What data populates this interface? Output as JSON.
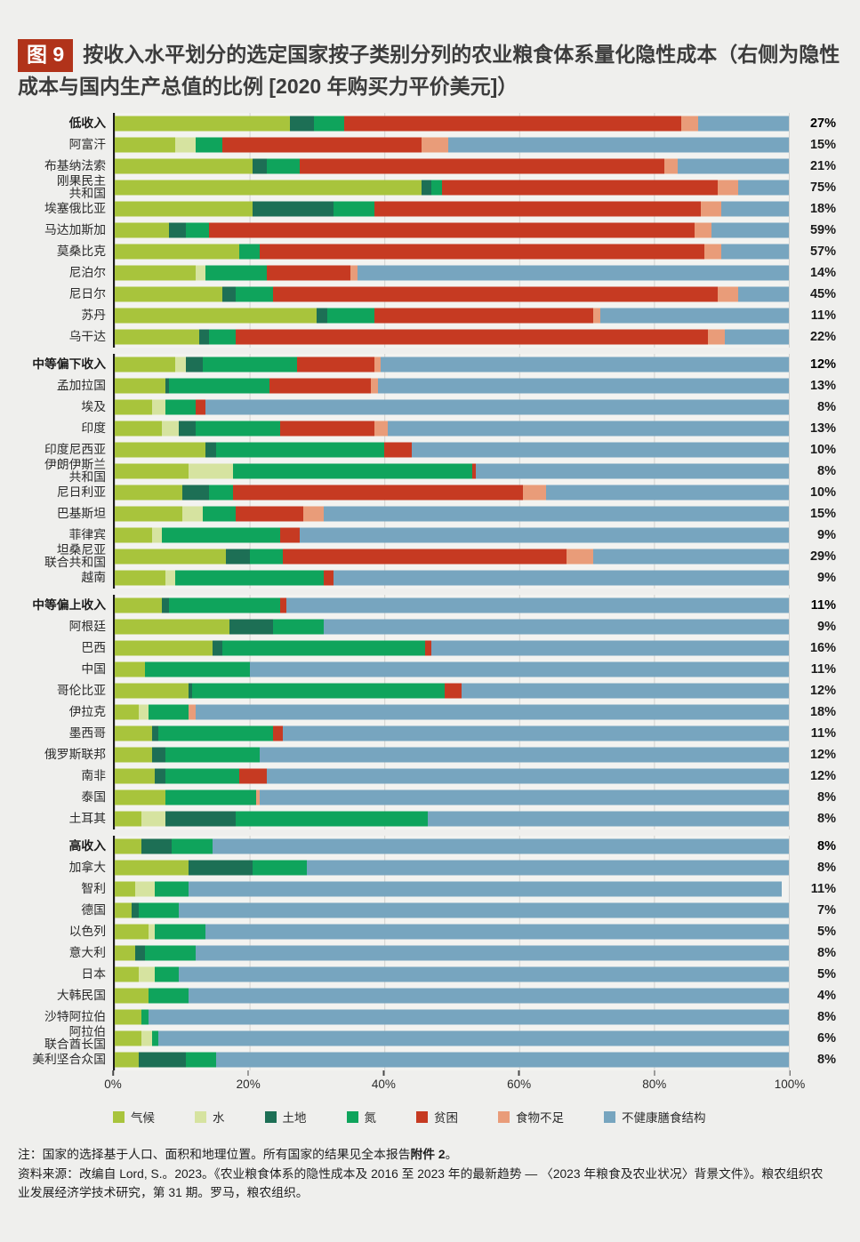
{
  "figure": {
    "badge": "图 9",
    "title": "按收入水平划分的选定国家按子类别分列的农业粮食体系量化隐性成本（右侧为隐性成本与国内生产总值的比例 [2020 年购买力平价美元]）"
  },
  "chart_data": {
    "type": "bar",
    "stacked": true,
    "orientation": "horizontal",
    "value_unit": "percent share of quantified hidden costs",
    "xlim": [
      0,
      100
    ],
    "grid": true,
    "x_ticks": [
      "0%",
      "20%",
      "40%",
      "60%",
      "80%",
      "100%"
    ],
    "right_column": "hidden costs as share of GDP",
    "legend": [
      {
        "key": "climate",
        "label": "气候",
        "color": "#a8c43c"
      },
      {
        "key": "water",
        "label": "水",
        "color": "#d6e3a0"
      },
      {
        "key": "land",
        "label": "土地",
        "color": "#1d6f55"
      },
      {
        "key": "nitrogen",
        "label": "氮",
        "color": "#0fa45c"
      },
      {
        "key": "poverty",
        "label": "贫困",
        "color": "#c63a22"
      },
      {
        "key": "food",
        "label": "食物不足",
        "color": "#e99c79"
      },
      {
        "key": "diets",
        "label": "不健康膳食结构",
        "color": "#77a5bf"
      }
    ],
    "groups": [
      {
        "name": "低收入",
        "rows": [
          {
            "label": "低收入",
            "bold": true,
            "gdp": "27%",
            "v": {
              "climate": 26,
              "water": 0,
              "land": 3.5,
              "nitrogen": 4.5,
              "poverty": 50,
              "food": 2.5,
              "diets": 13.5
            }
          },
          {
            "label": "阿富汗",
            "gdp": "15%",
            "v": {
              "climate": 9,
              "water": 3,
              "land": 0,
              "nitrogen": 4,
              "poverty": 29.5,
              "food": 4,
              "diets": 50.5
            }
          },
          {
            "label": "布基纳法索",
            "gdp": "21%",
            "v": {
              "climate": 20.5,
              "water": 0,
              "land": 2,
              "nitrogen": 5,
              "poverty": 54,
              "food": 2,
              "diets": 16.5
            }
          },
          {
            "label": "刚果民主\n共和国",
            "gdp": "75%",
            "v": {
              "climate": 45.5,
              "water": 0,
              "land": 1.5,
              "nitrogen": 1.5,
              "poverty": 41,
              "food": 3,
              "diets": 7.5
            }
          },
          {
            "label": "埃塞俄比亚",
            "gdp": "18%",
            "v": {
              "climate": 20.5,
              "water": 0,
              "land": 12,
              "nitrogen": 6,
              "poverty": 48.5,
              "food": 3,
              "diets": 10
            }
          },
          {
            "label": "马达加斯加",
            "gdp": "59%",
            "v": {
              "climate": 8,
              "water": 0,
              "land": 2.5,
              "nitrogen": 3.5,
              "poverty": 72,
              "food": 2.5,
              "diets": 11.5
            }
          },
          {
            "label": "莫桑比克",
            "gdp": "57%",
            "v": {
              "climate": 18.5,
              "water": 0,
              "land": 0,
              "nitrogen": 3,
              "poverty": 66,
              "food": 2.5,
              "diets": 10
            }
          },
          {
            "label": "尼泊尔",
            "gdp": "14%",
            "v": {
              "climate": 12,
              "water": 1.5,
              "land": 0,
              "nitrogen": 9,
              "poverty": 12.5,
              "food": 1,
              "diets": 64
            }
          },
          {
            "label": "尼日尔",
            "gdp": "45%",
            "v": {
              "climate": 16,
              "water": 0,
              "land": 2,
              "nitrogen": 5.5,
              "poverty": 66,
              "food": 3,
              "diets": 7.5
            }
          },
          {
            "label": "苏丹",
            "gdp": "11%",
            "v": {
              "climate": 30,
              "water": 0,
              "land": 1.5,
              "nitrogen": 7,
              "poverty": 32.5,
              "food": 1,
              "diets": 28
            }
          },
          {
            "label": "乌干达",
            "gdp": "22%",
            "v": {
              "climate": 12.5,
              "water": 0,
              "land": 1.5,
              "nitrogen": 4,
              "poverty": 70,
              "food": 2.5,
              "diets": 9.5
            }
          }
        ]
      },
      {
        "name": "中等偏下收入",
        "rows": [
          {
            "label": "中等偏下收入",
            "bold": true,
            "gdp": "12%",
            "v": {
              "climate": 9,
              "water": 1.5,
              "land": 2.5,
              "nitrogen": 14,
              "poverty": 11.5,
              "food": 1,
              "diets": 60.5
            }
          },
          {
            "label": "孟加拉国",
            "gdp": "13%",
            "v": {
              "climate": 7.5,
              "water": 0,
              "land": 0.5,
              "nitrogen": 15,
              "poverty": 15,
              "food": 1,
              "diets": 61
            }
          },
          {
            "label": "埃及",
            "gdp": "8%",
            "v": {
              "climate": 5.5,
              "water": 2,
              "land": 0,
              "nitrogen": 4.5,
              "poverty": 1.5,
              "food": 0,
              "diets": 86.5
            }
          },
          {
            "label": "印度",
            "gdp": "13%",
            "v": {
              "climate": 7,
              "water": 2.5,
              "land": 2.5,
              "nitrogen": 12.5,
              "poverty": 14,
              "food": 2,
              "diets": 59.5
            }
          },
          {
            "label": "印度尼西亚",
            "gdp": "10%",
            "v": {
              "climate": 13.5,
              "water": 0,
              "land": 1.5,
              "nitrogen": 25,
              "poverty": 4,
              "food": 0,
              "diets": 56
            }
          },
          {
            "label": "伊朗伊斯兰\n共和国",
            "gdp": "8%",
            "v": {
              "climate": 11,
              "water": 6.5,
              "land": 0,
              "nitrogen": 35.5,
              "poverty": 0.5,
              "food": 0,
              "diets": 46.5
            }
          },
          {
            "label": "尼日利亚",
            "gdp": "10%",
            "v": {
              "climate": 10,
              "water": 0,
              "land": 4,
              "nitrogen": 3.5,
              "poverty": 43,
              "food": 3.5,
              "diets": 36
            }
          },
          {
            "label": "巴基斯坦",
            "gdp": "15%",
            "v": {
              "climate": 10,
              "water": 3,
              "land": 0,
              "nitrogen": 5,
              "poverty": 10,
              "food": 3,
              "diets": 69
            }
          },
          {
            "label": "菲律宾",
            "gdp": "9%",
            "v": {
              "climate": 5.5,
              "water": 1.5,
              "land": 0,
              "nitrogen": 17.5,
              "poverty": 3,
              "food": 0,
              "diets": 72.5
            }
          },
          {
            "label": "坦桑尼亚\n联合共和国",
            "gdp": "29%",
            "v": {
              "climate": 16.5,
              "water": 0,
              "land": 3.5,
              "nitrogen": 5,
              "poverty": 42,
              "food": 4,
              "diets": 29
            }
          },
          {
            "label": "越南",
            "gdp": "9%",
            "v": {
              "climate": 7.5,
              "water": 1.5,
              "land": 0,
              "nitrogen": 22,
              "poverty": 1.5,
              "food": 0,
              "diets": 67.5
            }
          }
        ]
      },
      {
        "name": "中等偏上收入",
        "rows": [
          {
            "label": "中等偏上收入",
            "bold": true,
            "gdp": "11%",
            "v": {
              "climate": 7,
              "water": 0,
              "land": 1,
              "nitrogen": 16.5,
              "poverty": 1,
              "food": 0,
              "diets": 74.5
            }
          },
          {
            "label": "阿根廷",
            "gdp": "9%",
            "v": {
              "climate": 17,
              "water": 0,
              "land": 6.5,
              "nitrogen": 7.5,
              "poverty": 0,
              "food": 0,
              "diets": 69
            }
          },
          {
            "label": "巴西",
            "gdp": "16%",
            "v": {
              "climate": 14.5,
              "water": 0,
              "land": 1.5,
              "nitrogen": 30,
              "poverty": 1,
              "food": 0,
              "diets": 53
            }
          },
          {
            "label": "中国",
            "gdp": "11%",
            "v": {
              "climate": 4.5,
              "water": 0,
              "land": 0,
              "nitrogen": 15.5,
              "poverty": 0,
              "food": 0,
              "diets": 80
            }
          },
          {
            "label": "哥伦比亚",
            "gdp": "12%",
            "v": {
              "climate": 11,
              "water": 0,
              "land": 0.5,
              "nitrogen": 37.5,
              "poverty": 2.5,
              "food": 0,
              "diets": 48.5
            }
          },
          {
            "label": "伊拉克",
            "gdp": "18%",
            "v": {
              "climate": 3.5,
              "water": 1.5,
              "land": 0,
              "nitrogen": 6,
              "poverty": 0,
              "food": 1,
              "diets": 88
            }
          },
          {
            "label": "墨西哥",
            "gdp": "11%",
            "v": {
              "climate": 5.5,
              "water": 0,
              "land": 1,
              "nitrogen": 17,
              "poverty": 1.5,
              "food": 0,
              "diets": 75
            }
          },
          {
            "label": "俄罗斯联邦",
            "gdp": "12%",
            "v": {
              "climate": 5.5,
              "water": 0,
              "land": 2,
              "nitrogen": 14,
              "poverty": 0,
              "food": 0,
              "diets": 78.5
            }
          },
          {
            "label": "南非",
            "gdp": "12%",
            "v": {
              "climate": 6,
              "water": 0,
              "land": 1.5,
              "nitrogen": 11,
              "poverty": 4,
              "food": 0,
              "diets": 77.5
            }
          },
          {
            "label": "泰国",
            "gdp": "8%",
            "v": {
              "climate": 7.5,
              "water": 0,
              "land": 0,
              "nitrogen": 13.5,
              "poverty": 0,
              "food": 0.5,
              "diets": 78.5
            }
          },
          {
            "label": "土耳其",
            "gdp": "8%",
            "v": {
              "climate": 4,
              "water": 3.5,
              "land": 10.5,
              "nitrogen": 28.5,
              "poverty": 0,
              "food": 0,
              "diets": 53.5
            }
          }
        ]
      },
      {
        "name": "高收入",
        "rows": [
          {
            "label": "高收入",
            "bold": true,
            "gdp": "8%",
            "v": {
              "climate": 4,
              "water": 0,
              "land": 4.5,
              "nitrogen": 6,
              "poverty": 0,
              "food": 0,
              "diets": 85.5
            }
          },
          {
            "label": "加拿大",
            "gdp": "8%",
            "v": {
              "climate": 11,
              "water": 0,
              "land": 9.5,
              "nitrogen": 8,
              "poverty": 0,
              "food": 0,
              "diets": 71.5
            }
          },
          {
            "label": "智利",
            "gdp": "11%",
            "v": {
              "climate": 3,
              "water": 3,
              "land": 0,
              "nitrogen": 5,
              "poverty": 0,
              "food": 0,
              "diets": 88
            }
          },
          {
            "label": "德国",
            "gdp": "7%",
            "v": {
              "climate": 2.5,
              "water": 0,
              "land": 1,
              "nitrogen": 6,
              "poverty": 0,
              "food": 0,
              "diets": 90.5
            }
          },
          {
            "label": "以色列",
            "gdp": "5%",
            "v": {
              "climate": 5,
              "water": 1,
              "land": 0,
              "nitrogen": 7.5,
              "poverty": 0,
              "food": 0,
              "diets": 86.5
            }
          },
          {
            "label": "意大利",
            "gdp": "8%",
            "v": {
              "climate": 3,
              "water": 0,
              "land": 1.5,
              "nitrogen": 7.5,
              "poverty": 0,
              "food": 0,
              "diets": 88
            }
          },
          {
            "label": "日本",
            "gdp": "5%",
            "v": {
              "climate": 3.5,
              "water": 2.5,
              "land": 0,
              "nitrogen": 3.5,
              "poverty": 0,
              "food": 0,
              "diets": 90.5
            }
          },
          {
            "label": "大韩民国",
            "gdp": "4%",
            "v": {
              "climate": 5,
              "water": 0,
              "land": 0,
              "nitrogen": 6,
              "poverty": 0,
              "food": 0,
              "diets": 89
            }
          },
          {
            "label": "沙特阿拉伯",
            "gdp": "8%",
            "v": {
              "climate": 4,
              "water": 0,
              "land": 0,
              "nitrogen": 1,
              "poverty": 0,
              "food": 0,
              "diets": 95
            }
          },
          {
            "label": "阿拉伯\n联合酋长国",
            "gdp": "6%",
            "v": {
              "climate": 4,
              "water": 1.5,
              "land": 0,
              "nitrogen": 1,
              "poverty": 0,
              "food": 0,
              "diets": 93.5
            }
          },
          {
            "label": "美利坚合众国",
            "gdp": "8%",
            "v": {
              "climate": 3.5,
              "water": 0,
              "land": 7,
              "nitrogen": 4.5,
              "poverty": 0,
              "food": 0,
              "diets": 85
            }
          }
        ]
      }
    ]
  },
  "notes": {
    "note_prefix": "注：国家的选择基于人口、面积和地理位置。所有国家的结果见全本报告",
    "note_bold": "附件 2",
    "note_suffix": "。",
    "source": "资料来源：改编自 Lord, S.。2023。《农业粮食体系的隐性成本及 2016 至 2023 年的最新趋势 — 〈2023 年粮食及农业状况〉背景文件》。粮农组织农业发展经济学技术研究，第 31 期。罗马，粮农组织。"
  }
}
